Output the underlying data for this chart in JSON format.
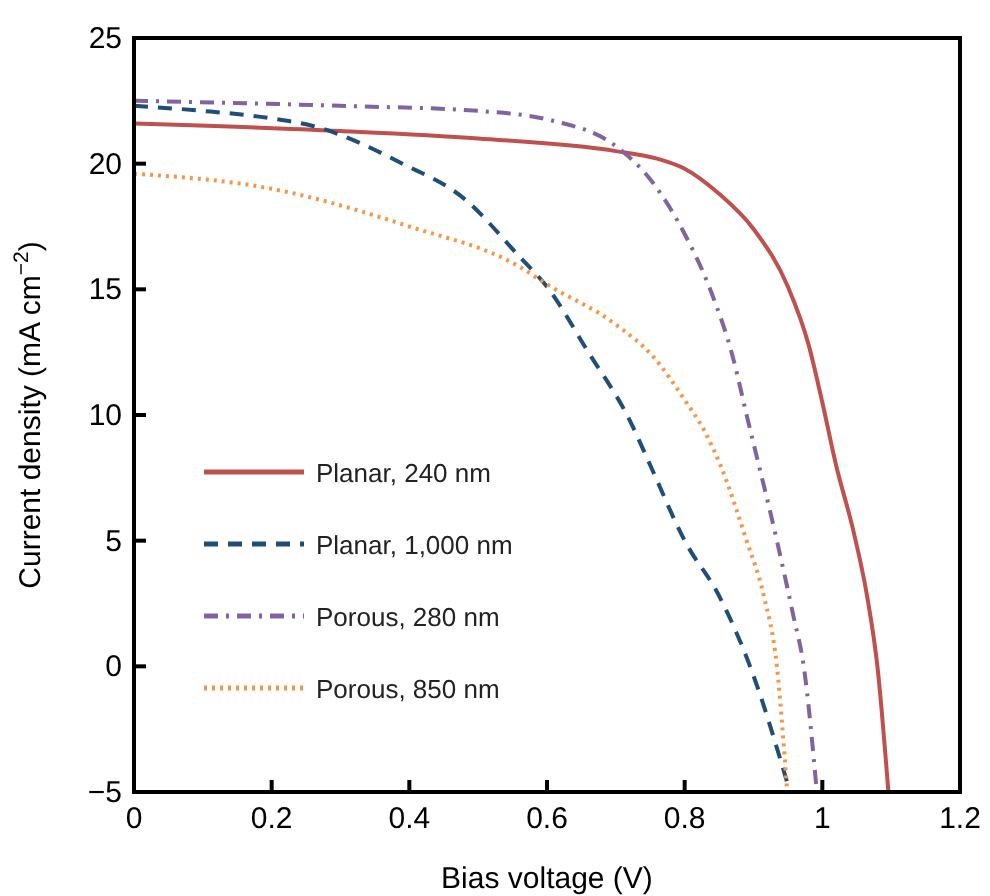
{
  "chart_data": {
    "type": "line",
    "xlabel": "Bias voltage (V)",
    "ylabel": "Current density (mA cm$^{−2}$)",
    "xlim": [
      0,
      1.2
    ],
    "ylim": [
      -5,
      25
    ],
    "xticks": [
      0,
      0.2,
      0.4,
      0.6,
      0.8,
      {
        "value": 1,
        "label": "1"
      },
      1.2
    ],
    "yticks": [
      {
        "value": -5,
        "label": "−5"
      },
      0,
      5,
      10,
      15,
      20,
      25
    ],
    "grid": false,
    "legend": "bottom left",
    "series": [
      {
        "name": "Planar, 240 nm",
        "color": "#c0504d",
        "line_style": "solid",
        "x": [
          0,
          0.3,
          0.5,
          0.7,
          0.76,
          0.8,
          0.85,
          0.9,
          0.95,
          0.98,
          1.0,
          1.02,
          1.045,
          1.065,
          1.08,
          1.096
        ],
        "values": [
          21.6,
          21.3,
          21.0,
          20.5,
          20.2,
          19.8,
          18.8,
          17.4,
          15.1,
          12.8,
          10.5,
          8.0,
          5.4,
          2.8,
          0,
          -5
        ]
      },
      {
        "name": "Planar, 1,000 nm",
        "color": "#1f4e79",
        "line_style": "dashed",
        "x": [
          0,
          0.1,
          0.2,
          0.26,
          0.39,
          0.48,
          0.56,
          0.6,
          0.66,
          0.72,
          0.75,
          0.8,
          0.85,
          0.895,
          0.953
        ],
        "values": [
          22.3,
          22.1,
          21.8,
          21.5,
          20,
          18.6,
          16.3,
          15.1,
          12.5,
          9.8,
          8,
          5,
          2.8,
          0,
          -5
        ]
      },
      {
        "name": "Porous, 280 nm",
        "color": "#8064a2",
        "line_style": "dashdot",
        "x": [
          0,
          0.3,
          0.5,
          0.61,
          0.7,
          0.755,
          0.8,
          0.837,
          0.871,
          0.89,
          0.934,
          0.958,
          0.973,
          0.992
        ],
        "values": [
          22.5,
          22.3,
          22.1,
          21.7,
          20.7,
          19.2,
          17.2,
          15,
          12.2,
          10,
          5,
          2,
          0,
          -5
        ]
      },
      {
        "name": "Porous, 850 nm",
        "color": "#f79646",
        "line_style": "dotted",
        "x": [
          0,
          0.2,
          0.4,
          0.56,
          0.6,
          0.7,
          0.755,
          0.8,
          0.83,
          0.852,
          0.89,
          0.915,
          0.934,
          0.949
        ],
        "values": [
          19.6,
          19.0,
          17.5,
          15.9,
          15.2,
          13.6,
          12.3,
          10.6,
          9.3,
          8.0,
          5,
          2.8,
          0,
          -5
        ]
      }
    ]
  }
}
